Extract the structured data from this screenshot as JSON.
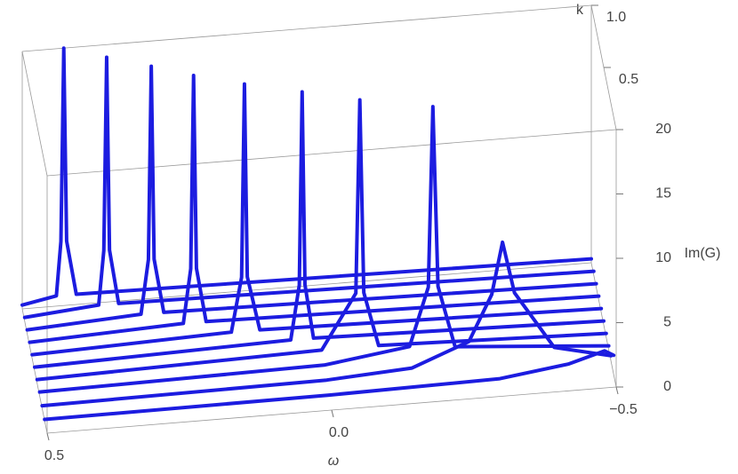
{
  "chart_data": {
    "type": "line3d",
    "xlabel": "ω",
    "ylabel": "k",
    "zlabel": "Im(G)",
    "xlim": [
      0.5,
      -0.5
    ],
    "ylim": [
      0,
      1
    ],
    "zlim": [
      0,
      20
    ],
    "xticks": [
      0.5,
      {
        "value": 0,
        "label": "0.0"
      },
      {
        "value": -0.5,
        "label": "−0.5"
      }
    ],
    "yticks": [
      0.5,
      {
        "value": 1,
        "label": "1.0"
      }
    ],
    "zticks": [
      0,
      5,
      10,
      15,
      20
    ],
    "color": "#1c1ce0",
    "series": [
      {
        "k": 0.1,
        "x": [
          0.5,
          0,
          -0.3,
          -0.42,
          -0.46,
          -0.484,
          -0.5
        ],
        "values": [
          0.1,
          0.2,
          0.4,
          1.1,
          1.6,
          1.9,
          1.5
        ]
      },
      {
        "k": 0.2,
        "x": [
          0.5,
          0,
          -0.15,
          -0.25,
          -0.29,
          -0.309,
          -0.33,
          -0.4,
          -0.5
        ],
        "values": [
          0.2,
          0.4,
          0.8,
          2.5,
          6,
          10,
          6,
          1.5,
          0.5
        ]
      },
      {
        "k": 0.3,
        "x": [
          0.5,
          0,
          -0.15,
          -0.183,
          -0.191,
          -0.2,
          -0.23,
          -0.5
        ],
        "values": [
          0.3,
          0.6,
          1.5,
          6,
          20,
          6,
          1.2,
          0.3
        ]
      },
      {
        "k": 0.4,
        "x": [
          0.5,
          0,
          -0.06,
          -0.067,
          -0.074,
          -0.1,
          -0.5
        ],
        "values": [
          0.3,
          0.8,
          5,
          20,
          5,
          0.8,
          0.3
        ]
      },
      {
        "k": 0.5,
        "x": [
          0.5,
          0.05,
          0.035,
          0.03,
          0.025,
          0.01,
          -0.5
        ],
        "values": [
          0.3,
          0.8,
          5,
          20,
          5,
          0.8,
          0.3
        ]
      },
      {
        "k": 0.6,
        "x": [
          0.5,
          0.15,
          0.132,
          0.127,
          0.122,
          0.1,
          -0.5
        ],
        "values": [
          0.3,
          0.8,
          5,
          20,
          5,
          0.8,
          0.3
        ]
      },
      {
        "k": 0.7,
        "x": [
          0.5,
          0.23,
          0.217,
          0.212,
          0.207,
          0.19,
          -0.5
        ],
        "values": [
          0.3,
          0.8,
          5,
          20,
          5,
          0.8,
          0.3
        ]
      },
      {
        "k": 0.8,
        "x": [
          0.5,
          0.3,
          0.287,
          0.282,
          0.277,
          0.26,
          -0.5
        ],
        "values": [
          0.3,
          0.8,
          5,
          20,
          5,
          0.8,
          0.3
        ]
      },
      {
        "k": 0.9,
        "x": [
          0.5,
          0.37,
          0.361,
          0.356,
          0.351,
          0.335,
          -0.5
        ],
        "values": [
          0.3,
          0.8,
          5,
          20,
          5,
          0.8,
          0.3
        ]
      },
      {
        "k": 1.0,
        "x": [
          0.5,
          0.44,
          0.432,
          0.427,
          0.422,
          0.405,
          -0.5
        ],
        "values": [
          0.3,
          0.8,
          5,
          20,
          5,
          0.8,
          0.3
        ]
      }
    ]
  }
}
